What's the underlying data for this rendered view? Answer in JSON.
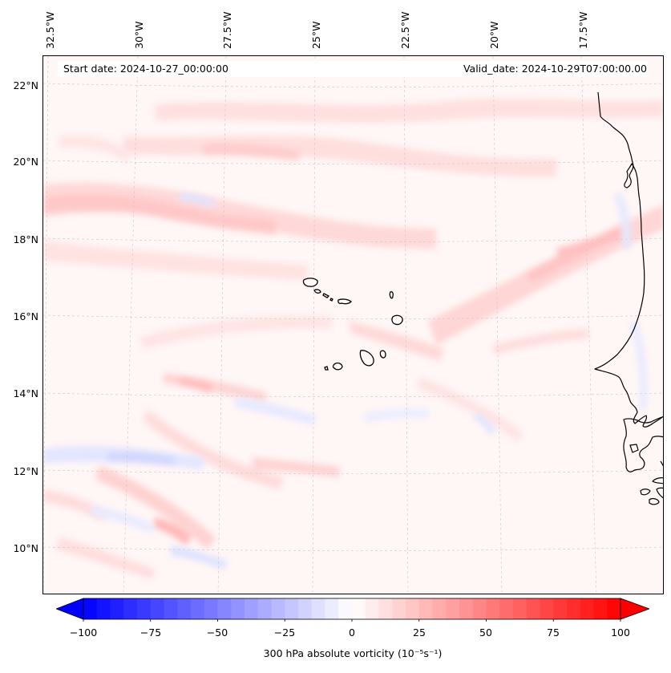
{
  "header": {
    "start_date": "Start date: 2024-10-27_00:00:00",
    "valid_date": "Valid_date: 2024-10-29T07:00:00.00"
  },
  "axes": {
    "lon_labels": [
      "32.5°W",
      "30°W",
      "27.5°W",
      "25°W",
      "22.5°W",
      "20°W",
      "17.5°W"
    ],
    "lat_labels": [
      "22°N",
      "20°N",
      "18°N",
      "16°N",
      "14°N",
      "12°N",
      "10°N"
    ]
  },
  "colorbar": {
    "label": "300 hPa absolute vorticity",
    "units_html": "(10⁻⁵s⁻¹)",
    "ticks": [
      "−100",
      "−75",
      "−50",
      "−25",
      "0",
      "25",
      "50",
      "75",
      "100"
    ],
    "range": [
      -100,
      100
    ],
    "step": 5,
    "cmap": "bwr",
    "low_color": "#0000ff",
    "mid_color": "#ffffff",
    "high_color": "#ff0000"
  },
  "map": {
    "lon_range_deg_w": [
      33.0,
      15.9
    ],
    "lat_range_deg_n": [
      8.9,
      22.8
    ],
    "features": [
      "Cape Verde islands",
      "West African coastline"
    ]
  }
}
